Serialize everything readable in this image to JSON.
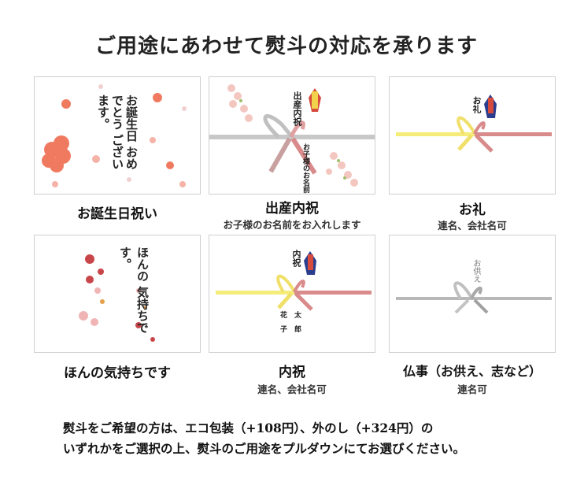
{
  "title": "ご用途にあわせて熨斗の対応を承ります",
  "cards": [
    {
      "card_text": "お誕生日 おめでとう ございます。",
      "caption": "お誕生日祝い",
      "sub": ""
    },
    {
      "card_text": "出産内祝",
      "card_name": "お子様のお名前",
      "caption": "出産内祝",
      "sub": "お子様のお名前をお入れします"
    },
    {
      "card_text": "お礼",
      "caption": "お礼",
      "sub": "連名、会社名可"
    },
    {
      "card_text": "ほんの 気持ちです。",
      "caption": "ほんの気持ちです",
      "sub": ""
    },
    {
      "card_text": "内祝",
      "card_name1": "花　太",
      "card_name2": "子　郎",
      "caption": "内祝",
      "sub": "連名、会社名可"
    },
    {
      "card_text": "お供え",
      "caption": "仏事（お供え、志など）",
      "sub": "連名可"
    }
  ],
  "notes": [
    "熨斗をご希望の方は、エコ包装（+108円）、外のし（+324円）の",
    "いずれかをご選択の上、熨斗のご用途をプルダウンにてお選びください。"
  ],
  "colors": {
    "pink": "#f08a7a",
    "ribbon_red": "#d98a8a",
    "ribbon_yellow": "#f5ec7a",
    "ribbon_gray": "#bbbbbb"
  }
}
